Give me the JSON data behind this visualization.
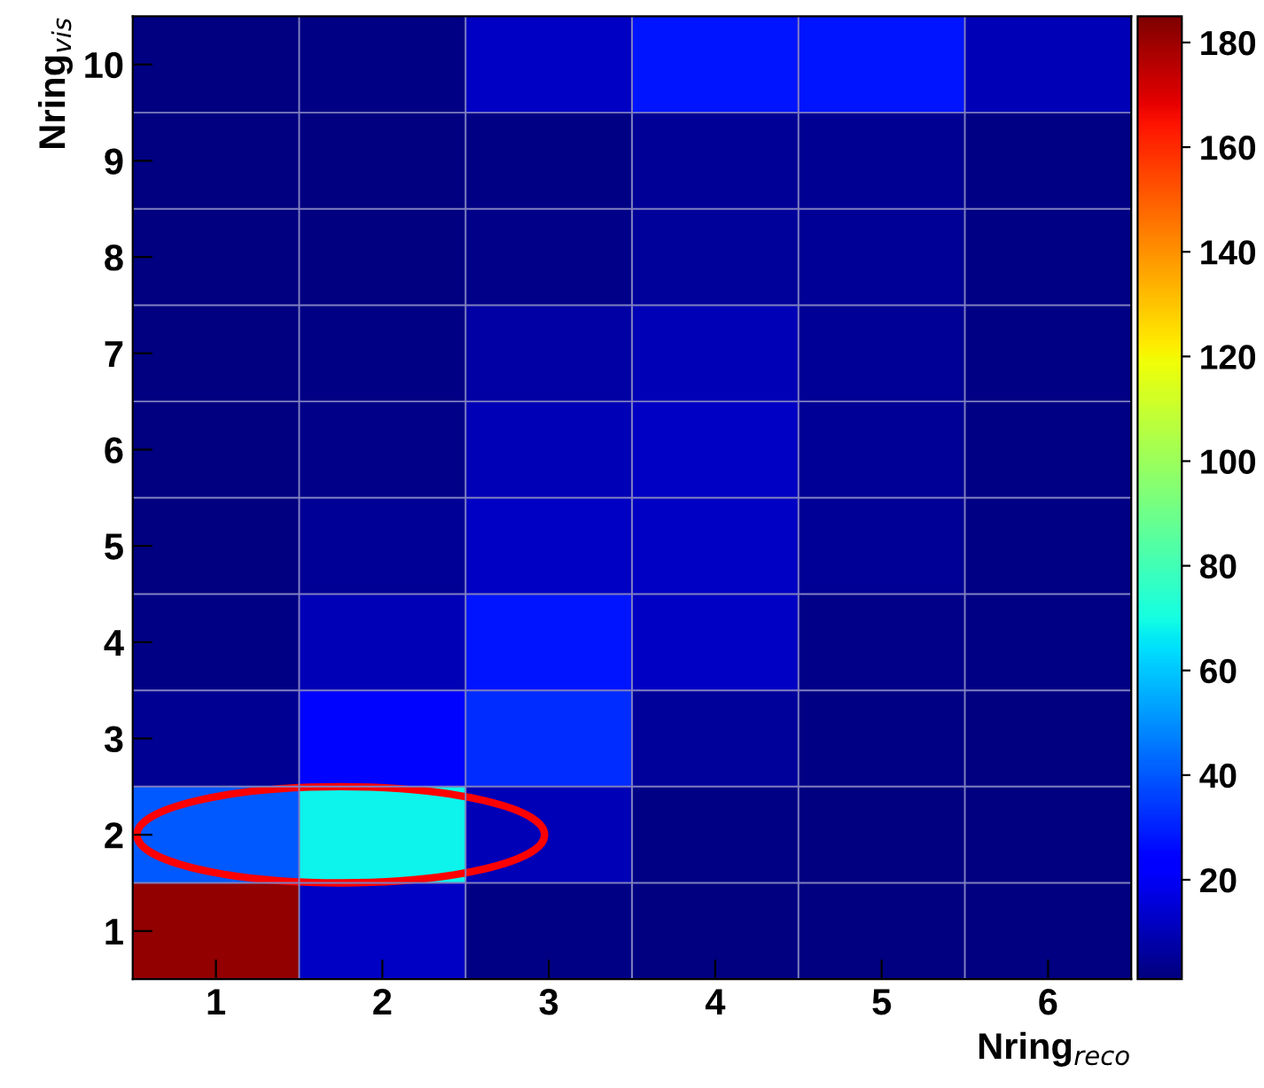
{
  "chart_data": {
    "type": "heatmap",
    "xlabel": "Nring$_{reco}$",
    "ylabel": "Nring$_{vis}$",
    "categories": [
      "1",
      "2",
      "3",
      "4",
      "5",
      "6"
    ],
    "y_categories": [
      "10",
      "9",
      "8",
      "7",
      "6",
      "5",
      "4",
      "3",
      "2",
      "1"
    ],
    "cells": [
      [
        1,
        2,
        12,
        28,
        28,
        10
      ],
      [
        1,
        1,
        2,
        5,
        4,
        2
      ],
      [
        1,
        1,
        3,
        6,
        5,
        2
      ],
      [
        1,
        2,
        7,
        10,
        5,
        2
      ],
      [
        1,
        3,
        10,
        12,
        5,
        2
      ],
      [
        1,
        5,
        12,
        12,
        5,
        2
      ],
      [
        2,
        10,
        28,
        12,
        3,
        2
      ],
      [
        4,
        25,
        32,
        6,
        2,
        1
      ],
      [
        40,
        68,
        10,
        2,
        1,
        1
      ],
      [
        182,
        12,
        2,
        1,
        1,
        1
      ]
    ],
    "clim": [
      1,
      185
    ],
    "cticks": [
      20,
      40,
      60,
      80,
      100,
      120,
      140,
      160,
      180
    ],
    "grid": true
  }
}
